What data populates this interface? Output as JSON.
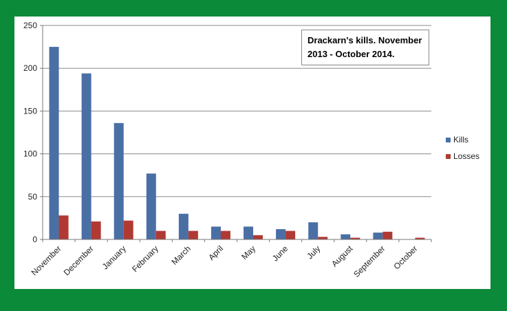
{
  "chart_data": {
    "type": "bar",
    "title": "Drackarn's kills. November 2013 - October 2014.",
    "categories": [
      "November",
      "December",
      "January",
      "February",
      "March",
      "April",
      "May",
      "June",
      "July",
      "August",
      "September",
      "October"
    ],
    "series": [
      {
        "name": "Kills",
        "color": "#4a6fa5",
        "values": [
          225,
          194,
          136,
          77,
          30,
          15,
          15,
          12,
          20,
          6,
          8,
          0
        ]
      },
      {
        "name": "Losses",
        "color": "#b03a33",
        "values": [
          28,
          21,
          22,
          10,
          10,
          10,
          5,
          10,
          3,
          2,
          9,
          2
        ]
      }
    ],
    "yticks": [
      0,
      50,
      100,
      150,
      200,
      250
    ],
    "ylim": [
      0,
      250
    ],
    "grid": true,
    "legend_position": "right"
  }
}
